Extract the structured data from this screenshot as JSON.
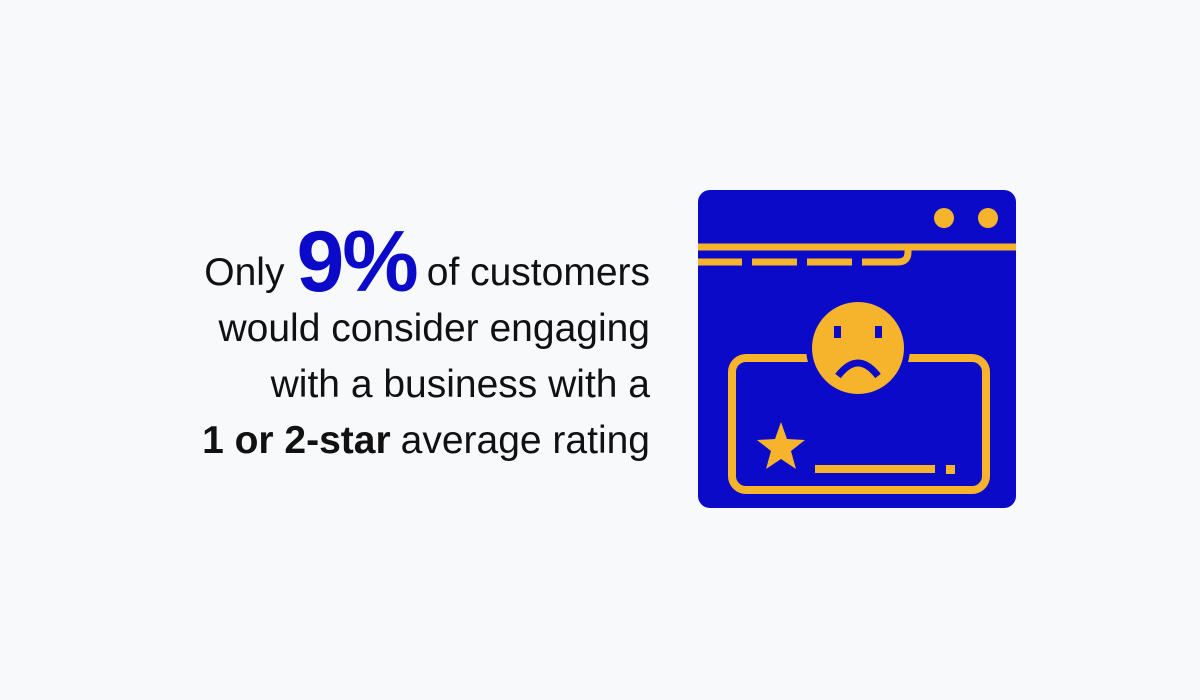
{
  "statement": {
    "line1": {
      "prefix": "Only",
      "stat": "9%",
      "suffix": "of customers"
    },
    "line2": "would consider engaging",
    "line3": "with a business with a",
    "line4": {
      "bold": "1 or 2-star",
      "rest": "average rating"
    }
  }
}
